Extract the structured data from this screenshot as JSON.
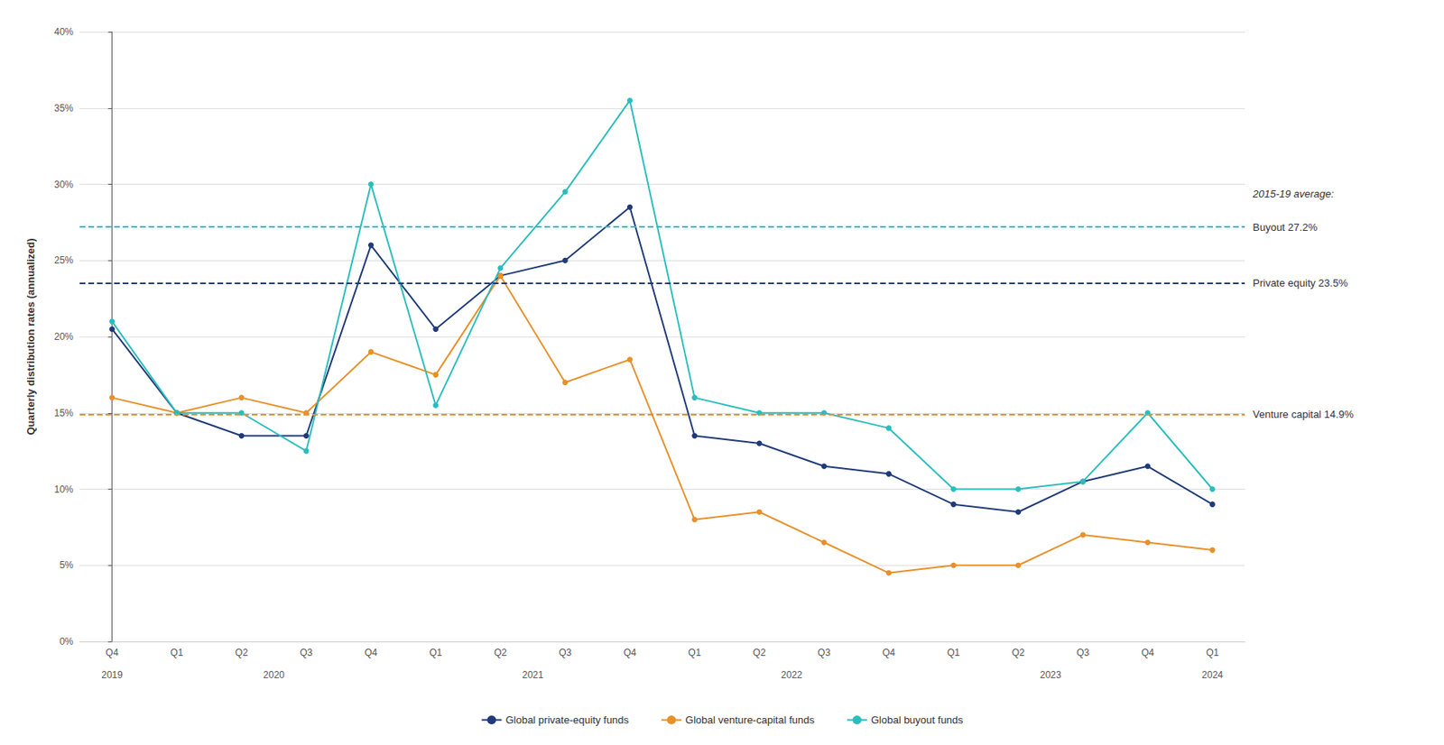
{
  "chart_data": {
    "type": "line",
    "categories": [
      "Q4",
      "Q1",
      "Q2",
      "Q3",
      "Q4",
      "Q1",
      "Q2",
      "Q3",
      "Q4",
      "Q1",
      "Q2",
      "Q3",
      "Q4",
      "Q1",
      "Q2",
      "Q3",
      "Q4",
      "Q1"
    ],
    "year_labels": [
      "2019",
      "2020",
      "2021",
      "2022",
      "2023",
      "2024"
    ],
    "y_label": "Quarterly distribution rates (annualized)",
    "series": [
      {
        "name": "Global private-equity funds",
        "color": "#1e3a78",
        "marker": "circle",
        "values": [
          20.5,
          15.0,
          13.5,
          13.5,
          26.0,
          20.5,
          24.0,
          25.0,
          28.5,
          13.5,
          13.0,
          11.5,
          11.0,
          9.0,
          8.5,
          10.5,
          11.5,
          9.0
        ],
        "average": 23.5,
        "average_label": "Private equity 23.5%"
      },
      {
        "name": "Global venture-capital funds",
        "color": "#e8902a",
        "marker": "circle",
        "values": [
          16.0,
          15.0,
          16.0,
          15.0,
          19.0,
          17.5,
          24.0,
          17.0,
          18.5,
          8.0,
          8.5,
          6.5,
          4.5,
          5.0,
          5.0,
          7.0,
          6.5,
          6.0
        ],
        "average": 14.9,
        "average_label": "Venture capital 14.9%"
      },
      {
        "name": "Global buyout funds",
        "color": "#2bbdbd",
        "marker": "circle",
        "values": [
          21.0,
          15.0,
          15.0,
          12.5,
          30.0,
          15.5,
          24.5,
          29.5,
          35.5,
          16.0,
          15.0,
          15.0,
          14.0,
          10.0,
          10.0,
          10.5,
          15.0,
          10.0
        ],
        "average": 27.2,
        "average_label": "Buyout 27.2%"
      }
    ],
    "annotation_title": "2015-19 average:",
    "ylim": [
      0,
      40
    ],
    "yticks": [
      {
        "value": 0,
        "label": "0%"
      },
      {
        "value": 5,
        "label": "5%"
      },
      {
        "value": 10,
        "label": "10%"
      },
      {
        "value": 15,
        "label": "15%"
      },
      {
        "value": 20,
        "label": "20%"
      },
      {
        "value": 25,
        "label": "25%"
      },
      {
        "value": 30,
        "label": "30%"
      },
      {
        "value": 35,
        "label": "35%"
      },
      {
        "value": 40,
        "label": "40%"
      }
    ],
    "grid": true,
    "legend": "bottom"
  }
}
